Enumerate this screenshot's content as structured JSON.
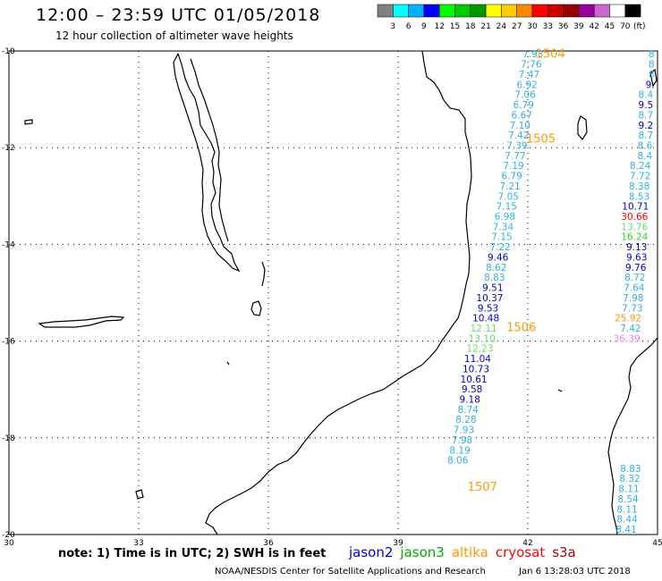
{
  "header": {
    "title": "12:00 – 23:59 UTC 01/05/2018",
    "subtitle": "12 hour collection of altimeter wave heights"
  },
  "legend": {
    "unit": "(ft)",
    "swatches": [
      {
        "color": "#808080",
        "label": "3"
      },
      {
        "color": "#00ffff",
        "label": "6"
      },
      {
        "color": "#00b0ff",
        "label": "9"
      },
      {
        "color": "#0000ff",
        "label": "12"
      },
      {
        "color": "#00ff00",
        "label": "15"
      },
      {
        "color": "#00cc00",
        "label": "18"
      },
      {
        "color": "#009900",
        "label": "21"
      },
      {
        "color": "#ffff00",
        "label": "24"
      },
      {
        "color": "#ffcc00",
        "label": "27"
      },
      {
        "color": "#ff8800",
        "label": "30"
      },
      {
        "color": "#ff0000",
        "label": "33"
      },
      {
        "color": "#cc0000",
        "label": "36"
      },
      {
        "color": "#990000",
        "label": "39"
      },
      {
        "color": "#990099",
        "label": "42"
      },
      {
        "color": "#cc66cc",
        "label": "45"
      },
      {
        "color": "#ffffff",
        "label": "70"
      },
      {
        "color": "#000000",
        "label": ""
      }
    ]
  },
  "axes": {
    "x_ticks": [
      "30",
      "33",
      "36",
      "39",
      "42",
      "45"
    ],
    "y_ticks": [
      "-10",
      "-12",
      "-14",
      "-16",
      "-18",
      "-20"
    ]
  },
  "map_data": {
    "lon_range": [
      30,
      45
    ],
    "lat_range": [
      -20,
      -10
    ],
    "colors": {
      "light": "#2fb0e6",
      "dark": "#0000cc",
      "green": "#33cc33",
      "lightgreen": "#66dd66",
      "red": "#ff0000",
      "orange": "#ff9900",
      "pink": "#ee88ee",
      "label": "#ff9900"
    },
    "pass_labels": [
      {
        "text": "1504",
        "lon": 42.52,
        "lat": -10.05
      },
      {
        "text": "1505",
        "lon": 42.3,
        "lat": -11.8
      },
      {
        "text": "1506",
        "lon": 41.85,
        "lat": -15.7
      },
      {
        "text": "1507",
        "lon": 40.95,
        "lat": -19.0
      }
    ],
    "track_a": [
      {
        "v": "7.93",
        "lon": 42.12,
        "lat": -10.06,
        "c": "light"
      },
      {
        "v": "7.76",
        "lon": 42.08,
        "lat": -10.27,
        "c": "light"
      },
      {
        "v": "7.47",
        "lon": 42.03,
        "lat": -10.48,
        "c": "light"
      },
      {
        "v": "6.92",
        "lon": 41.98,
        "lat": -10.69,
        "c": "light"
      },
      {
        "v": "7.06",
        "lon": 41.94,
        "lat": -10.9,
        "c": "light"
      },
      {
        "v": "6.79",
        "lon": 41.9,
        "lat": -11.11,
        "c": "light"
      },
      {
        "v": "6.67",
        "lon": 41.86,
        "lat": -11.32,
        "c": "light"
      },
      {
        "v": "7.10",
        "lon": 41.82,
        "lat": -11.53,
        "c": "light"
      },
      {
        "v": "7.42",
        "lon": 41.79,
        "lat": -11.74,
        "c": "light"
      },
      {
        "v": "7.39",
        "lon": 41.75,
        "lat": -11.95,
        "c": "light"
      },
      {
        "v": "7.77",
        "lon": 41.71,
        "lat": -12.16,
        "c": "light"
      },
      {
        "v": "7.19",
        "lon": 41.67,
        "lat": -12.37,
        "c": "light"
      },
      {
        "v": "6.79",
        "lon": 41.63,
        "lat": -12.58,
        "c": "light"
      },
      {
        "v": "7.21",
        "lon": 41.59,
        "lat": -12.79,
        "c": "light"
      },
      {
        "v": "7.05",
        "lon": 41.55,
        "lat": -13.0,
        "c": "light"
      },
      {
        "v": "7.15",
        "lon": 41.51,
        "lat": -13.21,
        "c": "light"
      },
      {
        "v": "6.98",
        "lon": 41.47,
        "lat": -13.42,
        "c": "light"
      },
      {
        "v": "7.34",
        "lon": 41.43,
        "lat": -13.63,
        "c": "light"
      },
      {
        "v": "7.15",
        "lon": 41.4,
        "lat": -13.84,
        "c": "light"
      },
      {
        "v": "7.22",
        "lon": 41.36,
        "lat": -14.05,
        "c": "light"
      },
      {
        "v": "9.46",
        "lon": 41.31,
        "lat": -14.26,
        "c": "dark"
      },
      {
        "v": "8.62",
        "lon": 41.27,
        "lat": -14.47,
        "c": "light"
      },
      {
        "v": "8.83",
        "lon": 41.23,
        "lat": -14.68,
        "c": "light"
      },
      {
        "v": "9.51",
        "lon": 41.19,
        "lat": -14.89,
        "c": "dark"
      },
      {
        "v": "10.37",
        "lon": 41.12,
        "lat": -15.1,
        "c": "dark"
      },
      {
        "v": "9.53",
        "lon": 41.08,
        "lat": -15.31,
        "c": "dark"
      },
      {
        "v": "10.48",
        "lon": 41.03,
        "lat": -15.52,
        "c": "dark"
      },
      {
        "v": "12.11",
        "lon": 40.98,
        "lat": -15.73,
        "c": "lightgreen"
      },
      {
        "v": "13.10",
        "lon": 40.94,
        "lat": -15.94,
        "c": "lightgreen"
      },
      {
        "v": "12.23",
        "lon": 40.89,
        "lat": -16.15,
        "c": "lightgreen"
      },
      {
        "v": "11.04",
        "lon": 40.84,
        "lat": -16.36,
        "c": "dark"
      },
      {
        "v": "10.73",
        "lon": 40.8,
        "lat": -16.57,
        "c": "dark"
      },
      {
        "v": "10.61",
        "lon": 40.75,
        "lat": -16.78,
        "c": "dark"
      },
      {
        "v": "9.58",
        "lon": 40.71,
        "lat": -16.99,
        "c": "dark"
      },
      {
        "v": "9.18",
        "lon": 40.66,
        "lat": -17.2,
        "c": "dark"
      },
      {
        "v": "8.74",
        "lon": 40.62,
        "lat": -17.41,
        "c": "light"
      },
      {
        "v": "8.28",
        "lon": 40.57,
        "lat": -17.62,
        "c": "light"
      },
      {
        "v": "7.93",
        "lon": 40.52,
        "lat": -17.83,
        "c": "light"
      },
      {
        "v": "7.98",
        "lon": 40.48,
        "lat": -18.04,
        "c": "light"
      },
      {
        "v": "8.19",
        "lon": 40.43,
        "lat": -18.25,
        "c": "light"
      },
      {
        "v": "8.06",
        "lon": 40.38,
        "lat": -18.46,
        "c": "light"
      }
    ],
    "track_b": [
      {
        "v": "8",
        "lon": 44.93,
        "lat": -10.06,
        "c": "light"
      },
      {
        "v": "8",
        "lon": 44.93,
        "lat": -10.27,
        "c": "light"
      },
      {
        "v": "8",
        "lon": 44.93,
        "lat": -10.48,
        "c": "light"
      },
      {
        "v": "9.",
        "lon": 44.93,
        "lat": -10.69,
        "c": "dark"
      },
      {
        "v": "8.4",
        "lon": 44.9,
        "lat": -10.9,
        "c": "light"
      },
      {
        "v": "9.5",
        "lon": 44.9,
        "lat": -11.11,
        "c": "dark"
      },
      {
        "v": "8.7",
        "lon": 44.9,
        "lat": -11.32,
        "c": "light"
      },
      {
        "v": "9.2",
        "lon": 44.9,
        "lat": -11.53,
        "c": "dark"
      },
      {
        "v": "8.7",
        "lon": 44.9,
        "lat": -11.74,
        "c": "light"
      },
      {
        "v": "8.6",
        "lon": 44.88,
        "lat": -11.95,
        "c": "light"
      },
      {
        "v": "8.4",
        "lon": 44.88,
        "lat": -12.16,
        "c": "light"
      },
      {
        "v": "8.24",
        "lon": 44.84,
        "lat": -12.37,
        "c": "light"
      },
      {
        "v": "7.72",
        "lon": 44.84,
        "lat": -12.58,
        "c": "light"
      },
      {
        "v": "8.38",
        "lon": 44.82,
        "lat": -12.79,
        "c": "light"
      },
      {
        "v": "8.53",
        "lon": 44.82,
        "lat": -13.0,
        "c": "light"
      },
      {
        "v": "10.71",
        "lon": 44.8,
        "lat": -13.21,
        "c": "dark"
      },
      {
        "v": "30.66",
        "lon": 44.78,
        "lat": -13.42,
        "c": "red"
      },
      {
        "v": "13.76",
        "lon": 44.78,
        "lat": -13.63,
        "c": "lightgreen"
      },
      {
        "v": "16.24",
        "lon": 44.78,
        "lat": -13.84,
        "c": "green"
      },
      {
        "v": "9.13",
        "lon": 44.76,
        "lat": -14.05,
        "c": "dark"
      },
      {
        "v": "9.63",
        "lon": 44.76,
        "lat": -14.26,
        "c": "dark"
      },
      {
        "v": "9.76",
        "lon": 44.74,
        "lat": -14.47,
        "c": "dark"
      },
      {
        "v": "8.72",
        "lon": 44.72,
        "lat": -14.68,
        "c": "light"
      },
      {
        "v": "7.64",
        "lon": 44.7,
        "lat": -14.89,
        "c": "light"
      },
      {
        "v": "7.98",
        "lon": 44.68,
        "lat": -15.1,
        "c": "light"
      },
      {
        "v": "7.73",
        "lon": 44.66,
        "lat": -15.31,
        "c": "light"
      },
      {
        "v": "25.92",
        "lon": 44.63,
        "lat": -15.52,
        "c": "orange"
      },
      {
        "v": "7.42",
        "lon": 44.62,
        "lat": -15.73,
        "c": "light"
      },
      {
        "v": "36.39",
        "lon": 44.6,
        "lat": -15.94,
        "c": "pink"
      },
      {
        "v": "8.83",
        "lon": 44.62,
        "lat": -18.63,
        "c": "light"
      },
      {
        "v": "8.32",
        "lon": 44.6,
        "lat": -18.84,
        "c": "light"
      },
      {
        "v": "8.11",
        "lon": 44.58,
        "lat": -19.05,
        "c": "light"
      },
      {
        "v": "8.54",
        "lon": 44.56,
        "lat": -19.26,
        "c": "light"
      },
      {
        "v": "8.11",
        "lon": 44.54,
        "lat": -19.47,
        "c": "light"
      },
      {
        "v": "8.44",
        "lon": 44.54,
        "lat": -19.68,
        "c": "light"
      },
      {
        "v": "8.41",
        "lon": 44.52,
        "lat": -19.89,
        "c": "light"
      }
    ]
  },
  "footer": {
    "note": "note: 1) Time is in UTC; 2) SWH is in feet",
    "satellites": [
      {
        "name": "jason2",
        "color": "#0000dd"
      },
      {
        "name": "jason3",
        "color": "#00aa00"
      },
      {
        "name": "altika",
        "color": "#ff9900"
      },
      {
        "name": "cryosat",
        "color": "#ff0000"
      },
      {
        "name": "s3a",
        "color": "#aa0000"
      }
    ],
    "credit": "NOAA/NESDIS Center for Satellite Applications and Research",
    "timestamp": "Jan  6 13:28:03 UTC 2018"
  }
}
